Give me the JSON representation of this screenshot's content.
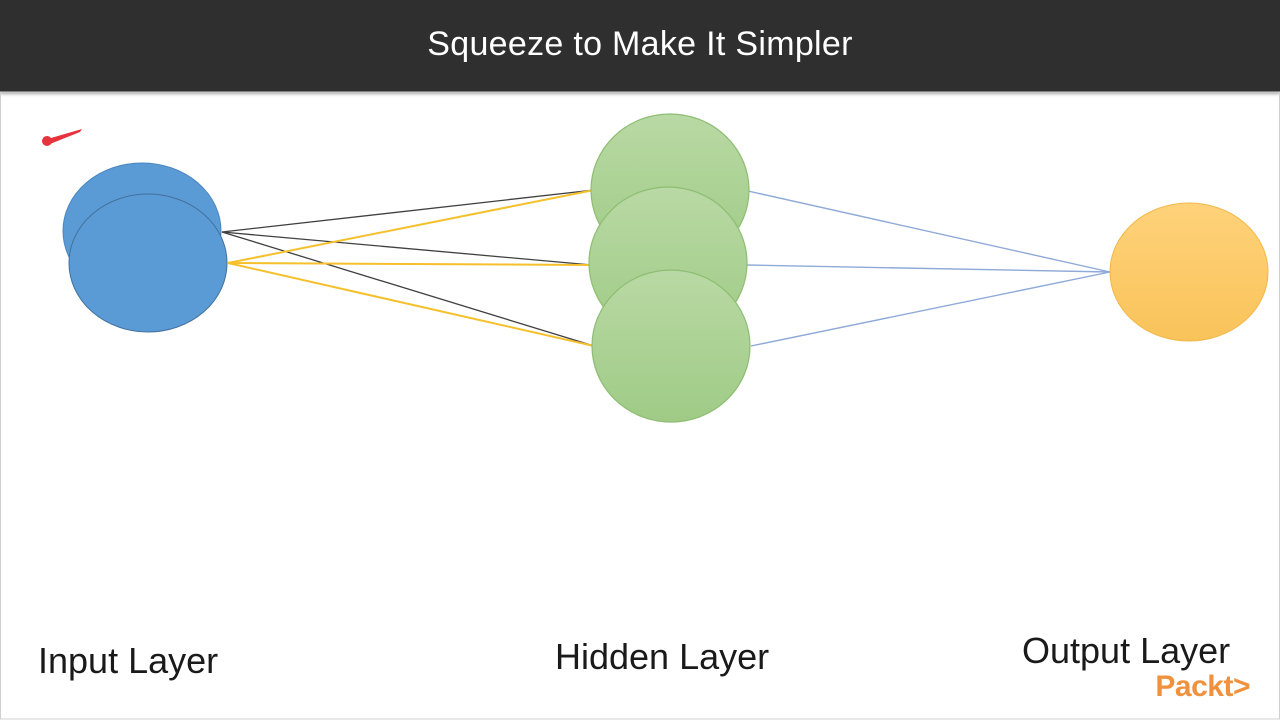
{
  "title": "Squeeze to Make It Simpler",
  "layers": {
    "input": "Input Layer",
    "hidden": "Hidden Layer",
    "output": "Output Layer"
  },
  "logo": "Packt>",
  "colors": {
    "title_bar": "#2f2f2f",
    "input_node": "#5b9bd5",
    "hidden_node": "#a9d18e",
    "output_node": "#ffc95a",
    "edge_dark": "#404040",
    "edge_yellow": "#f5c02c",
    "edge_blue": "#8fa9d8",
    "logo": "#f0913d"
  }
}
